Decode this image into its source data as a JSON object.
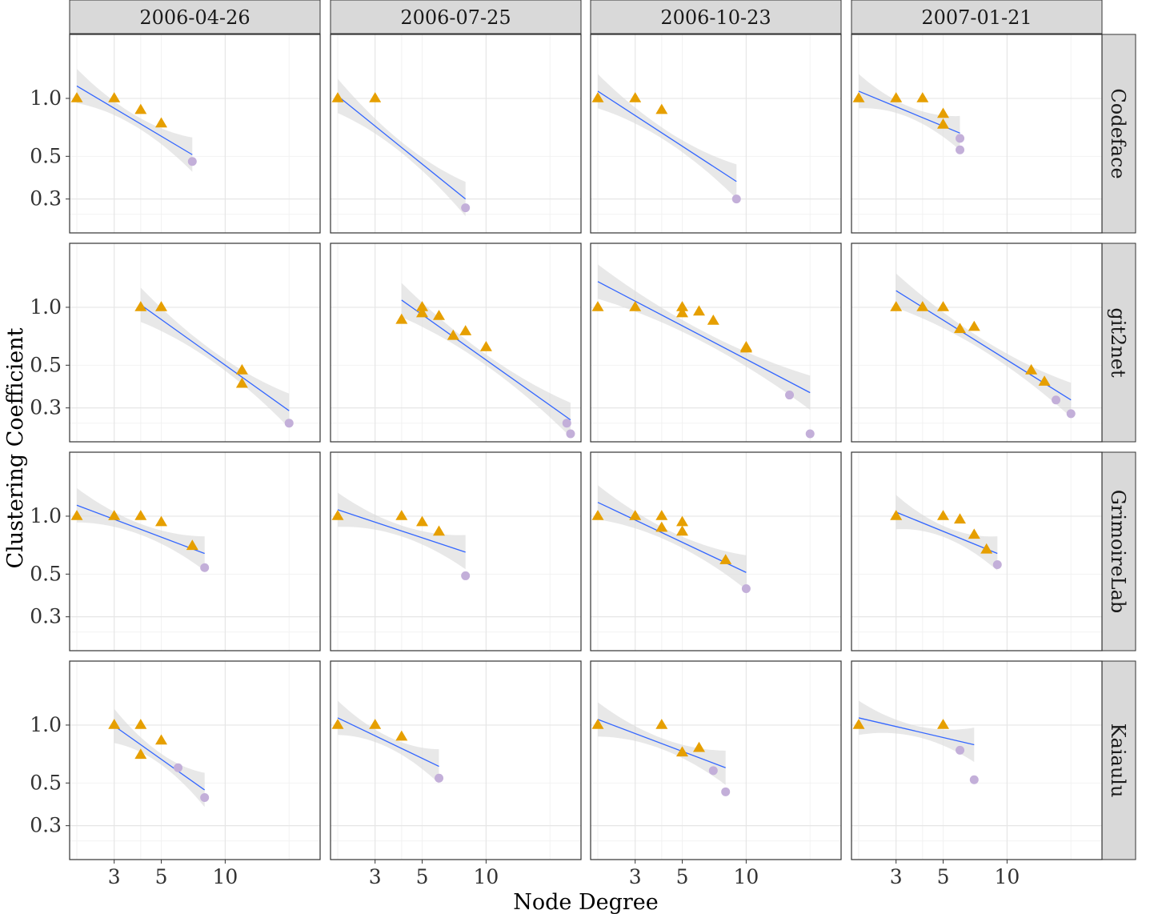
{
  "chart_data": {
    "type": "scatter",
    "xlabel": "Node Degree",
    "ylabel": "Clustering Coefficient",
    "x_scale": "log",
    "y_scale": "log",
    "xlim": [
      1.85,
      28
    ],
    "ylim": [
      0.2,
      2.15
    ],
    "x_ticks": [
      3,
      5,
      10
    ],
    "y_ticks": [
      1.0,
      0.5,
      0.3
    ],
    "grid": true,
    "legend": "none",
    "fit": "linear regression on log-log with confidence band",
    "colors": {
      "triangle": "#e69f00",
      "circle": "#c3afd9",
      "fit_line": "#3366ff",
      "band": "#d9d9d9",
      "strip": "#d9d9d9"
    },
    "columns": [
      "2006-04-26",
      "2006-07-25",
      "2006-10-23",
      "2007-01-21"
    ],
    "rows": [
      "Codeface",
      "git2net",
      "GrimoireLab",
      "Kaiaulu"
    ],
    "panels": [
      {
        "row": "Codeface",
        "column": "2006-04-26",
        "triangles": [
          [
            2,
            1.0
          ],
          [
            3,
            1.0
          ],
          [
            4,
            0.87
          ],
          [
            5,
            0.74
          ]
        ],
        "circles": [
          [
            7,
            0.47
          ]
        ],
        "fit": {
          "x": [
            2,
            7
          ],
          "y": [
            1.16,
            0.51
          ]
        }
      },
      {
        "row": "Codeface",
        "column": "2006-07-25",
        "triangles": [
          [
            2,
            1.0
          ],
          [
            3,
            1.0
          ]
        ],
        "circles": [
          [
            8,
            0.27
          ]
        ],
        "fit": {
          "x": [
            2,
            8
          ],
          "y": [
            1.03,
            0.3
          ]
        }
      },
      {
        "row": "Codeface",
        "column": "2006-10-23",
        "triangles": [
          [
            2,
            1.0
          ],
          [
            3,
            1.0
          ],
          [
            4,
            0.87
          ]
        ],
        "circles": [
          [
            9,
            0.3
          ]
        ],
        "fit": {
          "x": [
            2,
            9
          ],
          "y": [
            1.09,
            0.37
          ]
        }
      },
      {
        "row": "Codeface",
        "column": "2007-01-21",
        "triangles": [
          [
            2,
            1.0
          ],
          [
            3,
            1.0
          ],
          [
            4,
            1.0
          ],
          [
            5,
            0.83
          ],
          [
            5,
            0.73
          ]
        ],
        "circles": [
          [
            6,
            0.62
          ],
          [
            6,
            0.54
          ]
        ],
        "fit": {
          "x": [
            2,
            6
          ],
          "y": [
            1.09,
            0.66
          ]
        }
      },
      {
        "row": "git2net",
        "column": "2006-04-26",
        "triangles": [
          [
            4,
            1.0
          ],
          [
            5,
            1.0
          ],
          [
            12,
            0.47
          ],
          [
            12,
            0.4
          ]
        ],
        "circles": [
          [
            20,
            0.25
          ]
        ],
        "fit": {
          "x": [
            4,
            20
          ],
          "y": [
            1.03,
            0.29
          ]
        }
      },
      {
        "row": "git2net",
        "column": "2006-07-25",
        "triangles": [
          [
            4,
            0.86
          ],
          [
            5,
            1.0
          ],
          [
            5,
            0.93
          ],
          [
            6,
            0.9
          ],
          [
            7,
            0.71
          ],
          [
            8,
            0.75
          ],
          [
            10,
            0.62
          ]
        ],
        "circles": [
          [
            24,
            0.25
          ],
          [
            25,
            0.22
          ]
        ],
        "fit": {
          "x": [
            4,
            25
          ],
          "y": [
            1.09,
            0.26
          ]
        }
      },
      {
        "row": "git2net",
        "column": "2006-10-23",
        "triangles": [
          [
            2,
            1.0
          ],
          [
            3,
            1.0
          ],
          [
            5,
            1.0
          ],
          [
            5,
            0.93
          ],
          [
            6,
            0.95
          ],
          [
            7,
            0.85
          ],
          [
            10,
            0.62
          ],
          [
            10,
            0.61
          ]
        ],
        "circles": [
          [
            16,
            0.35
          ],
          [
            20,
            0.22
          ]
        ],
        "fit": {
          "x": [
            2,
            20
          ],
          "y": [
            1.36,
            0.36
          ]
        }
      },
      {
        "row": "git2net",
        "column": "2007-01-21",
        "triangles": [
          [
            3,
            1.0
          ],
          [
            4,
            1.0
          ],
          [
            5,
            1.0
          ],
          [
            6,
            0.77
          ],
          [
            7,
            0.79
          ],
          [
            13,
            0.47
          ],
          [
            15,
            0.41
          ]
        ],
        "circles": [
          [
            17,
            0.33
          ],
          [
            20,
            0.28
          ]
        ],
        "fit": {
          "x": [
            3,
            20
          ],
          "y": [
            1.22,
            0.33
          ]
        }
      },
      {
        "row": "GrimoireLab",
        "column": "2006-04-26",
        "triangles": [
          [
            2,
            1.0
          ],
          [
            3,
            1.0
          ],
          [
            4,
            1.0
          ],
          [
            5,
            0.93
          ],
          [
            7,
            0.7
          ]
        ],
        "circles": [
          [
            8,
            0.54
          ]
        ],
        "fit": {
          "x": [
            2,
            8
          ],
          "y": [
            1.14,
            0.64
          ]
        }
      },
      {
        "row": "GrimoireLab",
        "column": "2006-07-25",
        "triangles": [
          [
            2,
            1.0
          ],
          [
            4,
            1.0
          ],
          [
            5,
            0.93
          ],
          [
            6,
            0.83
          ]
        ],
        "circles": [
          [
            8,
            0.49
          ]
        ],
        "fit": {
          "x": [
            2,
            8
          ],
          "y": [
            1.08,
            0.65
          ]
        }
      },
      {
        "row": "GrimoireLab",
        "column": "2006-10-23",
        "triangles": [
          [
            2,
            1.0
          ],
          [
            3,
            1.0
          ],
          [
            4,
            1.0
          ],
          [
            4,
            0.87
          ],
          [
            5,
            0.93
          ],
          [
            5,
            0.83
          ],
          [
            8,
            0.59
          ]
        ],
        "circles": [
          [
            10,
            0.42
          ]
        ],
        "fit": {
          "x": [
            2,
            10
          ],
          "y": [
            1.18,
            0.51
          ]
        }
      },
      {
        "row": "GrimoireLab",
        "column": "2007-01-21",
        "triangles": [
          [
            3,
            1.0
          ],
          [
            5,
            1.0
          ],
          [
            6,
            0.96
          ],
          [
            7,
            0.8
          ],
          [
            8,
            0.67
          ]
        ],
        "circles": [
          [
            9,
            0.56
          ]
        ],
        "fit": {
          "x": [
            3,
            9
          ],
          "y": [
            1.05,
            0.64
          ]
        }
      },
      {
        "row": "Kaiaulu",
        "column": "2006-04-26",
        "triangles": [
          [
            3,
            1.0
          ],
          [
            4,
            1.0
          ],
          [
            4,
            0.7
          ],
          [
            5,
            0.83
          ]
        ],
        "circles": [
          [
            6,
            0.6
          ],
          [
            8,
            0.42
          ]
        ],
        "fit": {
          "x": [
            3,
            8
          ],
          "y": [
            0.99,
            0.46
          ]
        }
      },
      {
        "row": "Kaiaulu",
        "column": "2006-07-25",
        "triangles": [
          [
            2,
            1.0
          ],
          [
            3,
            1.0
          ],
          [
            4,
            0.87
          ]
        ],
        "circles": [
          [
            6,
            0.53
          ]
        ],
        "fit": {
          "x": [
            2,
            6
          ],
          "y": [
            1.09,
            0.61
          ]
        }
      },
      {
        "row": "Kaiaulu",
        "column": "2006-10-23",
        "triangles": [
          [
            2,
            1.0
          ],
          [
            4,
            1.0
          ],
          [
            5,
            0.72
          ],
          [
            6,
            0.76
          ]
        ],
        "circles": [
          [
            7,
            0.58
          ],
          [
            8,
            0.45
          ]
        ],
        "fit": {
          "x": [
            2,
            8
          ],
          "y": [
            1.07,
            0.6
          ]
        }
      },
      {
        "row": "Kaiaulu",
        "column": "2007-01-21",
        "triangles": [
          [
            2,
            1.0
          ],
          [
            5,
            1.0
          ]
        ],
        "circles": [
          [
            6,
            0.74
          ],
          [
            7,
            0.52
          ]
        ],
        "fit": {
          "x": [
            2,
            7
          ],
          "y": [
            1.09,
            0.79
          ]
        }
      }
    ]
  }
}
